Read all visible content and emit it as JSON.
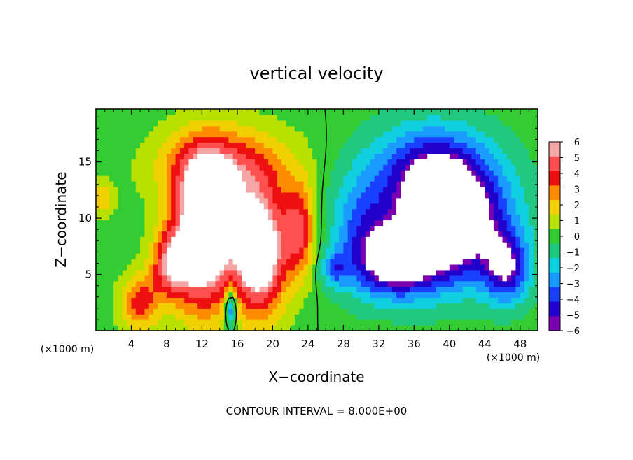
{
  "chart_data": {
    "type": "heatmap",
    "title": "vertical velocity",
    "xlabel": "X−coordinate",
    "ylabel": "Z−coordinate",
    "x_unit_left": "(×1000 m)",
    "x_unit_right": "(×1000 m)",
    "footer": "CONTOUR INTERVAL = 8.000E+00",
    "xlim": [
      0,
      50
    ],
    "ylim": [
      0,
      19.7
    ],
    "x_ticks": [
      4,
      8,
      12,
      16,
      20,
      24,
      28,
      32,
      36,
      40,
      44,
      48
    ],
    "y_ticks": [
      5,
      10,
      15
    ],
    "grid": false,
    "legend_position": "right",
    "colorbar": {
      "labels": [
        "6",
        "5",
        "4",
        "3",
        "2",
        "1",
        "0",
        "−1",
        "−2",
        "−3",
        "−4",
        "−5",
        "−6"
      ],
      "colors": [
        "#f4a6a6",
        "#ff5050",
        "#ee1010",
        "#ff8c00",
        "#f0d000",
        "#b8e000",
        "#33cc33",
        "#20c880",
        "#10d0e0",
        "#1a9bff",
        "#1a40ff",
        "#2200cc",
        "#7a00b0"
      ]
    },
    "features": [
      {
        "kind": "updraft",
        "x": 12.2,
        "z": 8.5,
        "wx": 3.3,
        "wz": 6.5,
        "amp": 9
      },
      {
        "kind": "updraft",
        "x": 18.5,
        "z": 7.0,
        "wx": 3.0,
        "wz": 5.5,
        "amp": 8.5
      },
      {
        "kind": "updraft",
        "x": 14.5,
        "z": 14.5,
        "wx": 7.0,
        "wz": 3.5,
        "amp": 4.5
      },
      {
        "kind": "updraft",
        "x": 8.5,
        "z": 6.0,
        "wx": 2.2,
        "wz": 3.0,
        "amp": 5
      },
      {
        "kind": "updraft",
        "x": 5.0,
        "z": 2.5,
        "wx": 2.2,
        "wz": 2.5,
        "amp": 4
      },
      {
        "kind": "updraft",
        "x": 23.0,
        "z": 9.0,
        "wx": 1.8,
        "wz": 4.0,
        "amp": 4.5
      },
      {
        "kind": "updraft",
        "x": 0.8,
        "z": 11.8,
        "wx": 1.2,
        "wz": 1.5,
        "amp": 2.5
      },
      {
        "kind": "downdraft",
        "x": 15.3,
        "z": 2.0,
        "wx": 0.7,
        "wz": 1.8,
        "amp": -5
      },
      {
        "kind": "downdraft",
        "x": 40.0,
        "z": 9.5,
        "wx": 6.5,
        "wz": 5.0,
        "amp": -9
      },
      {
        "kind": "downdraft",
        "x": 34.0,
        "z": 6.0,
        "wx": 4.5,
        "wz": 3.0,
        "amp": -6
      },
      {
        "kind": "downdraft",
        "x": 38.0,
        "z": 14.5,
        "wx": 6.5,
        "wz": 4.0,
        "amp": -4.5
      },
      {
        "kind": "downdraft",
        "x": 30.0,
        "z": 9.0,
        "wx": 3.5,
        "wz": 5.0,
        "amp": -3
      },
      {
        "kind": "downdraft",
        "x": 46.5,
        "z": 5.5,
        "wx": 2.5,
        "wz": 3.0,
        "amp": -5
      },
      {
        "kind": "downdraft",
        "x": 27.0,
        "z": 5.5,
        "wx": 1.5,
        "wz": 1.5,
        "amp": -3
      }
    ]
  }
}
